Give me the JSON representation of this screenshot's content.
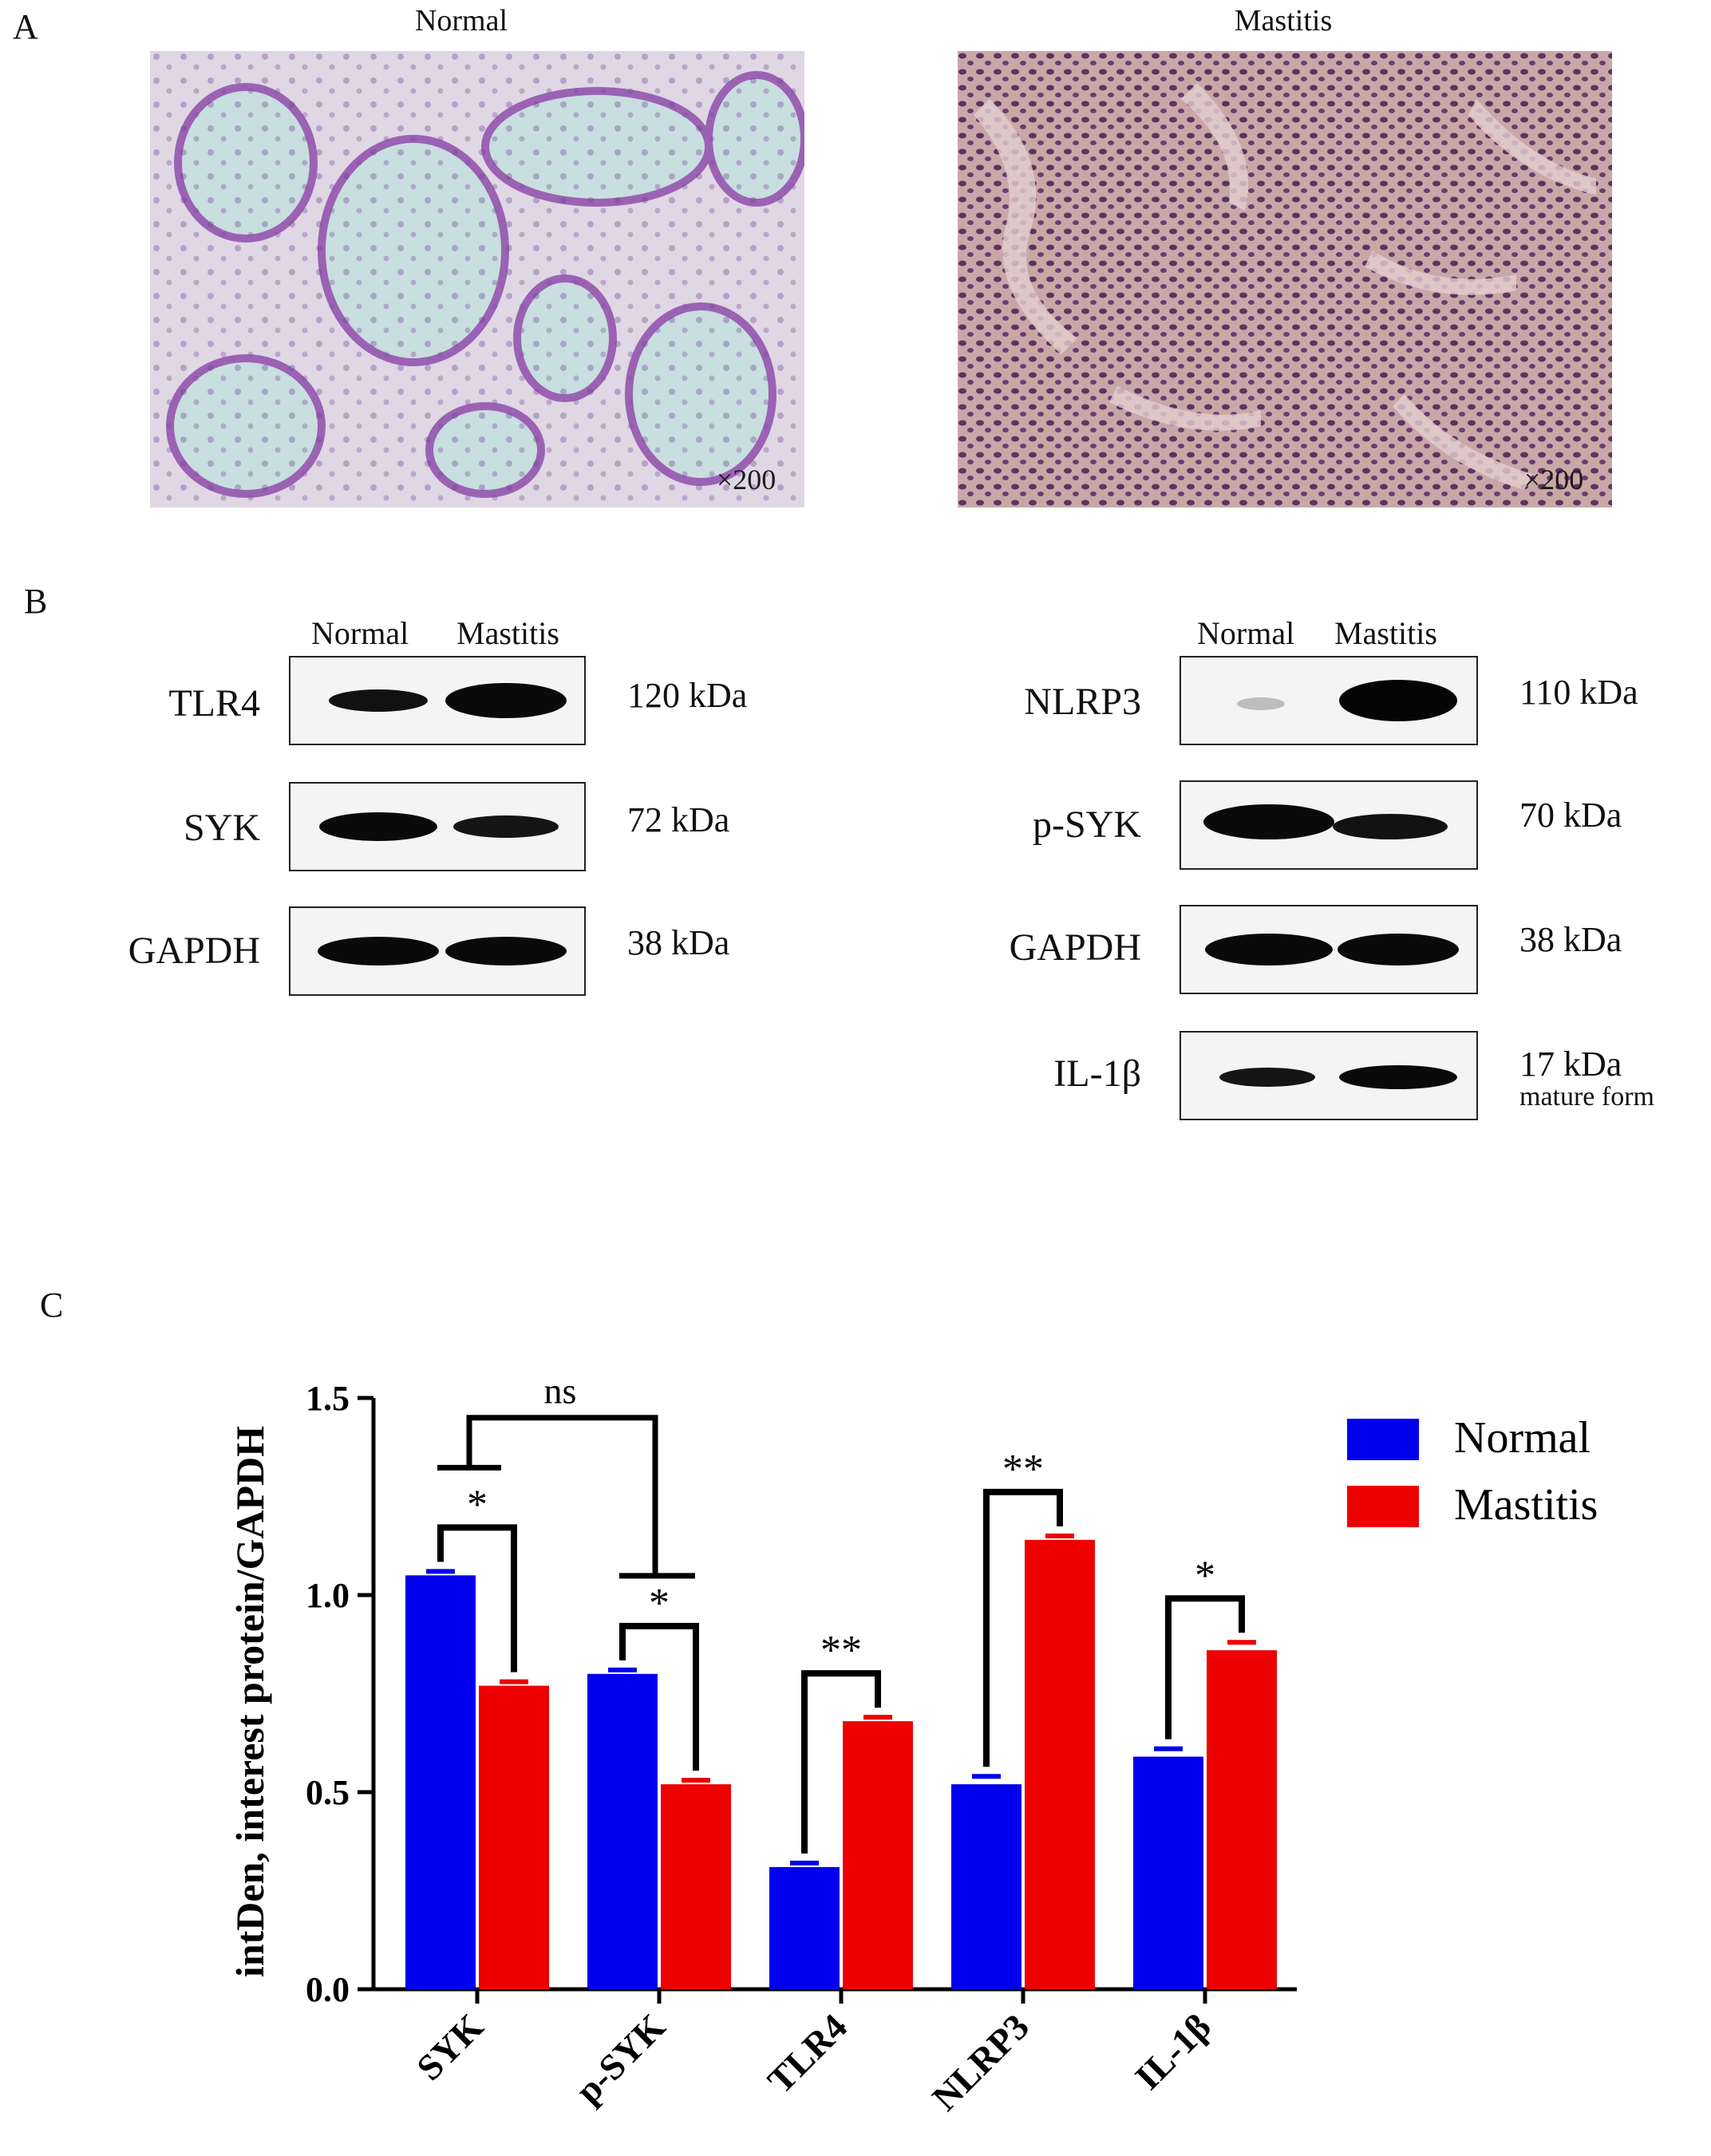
{
  "panels": {
    "a": "A",
    "b": "B",
    "c": "C"
  },
  "panel_a": {
    "left_title": "Normal",
    "right_title": "Mastitis",
    "left_magnification": "×200",
    "right_magnification": "×200"
  },
  "panel_b": {
    "lane_labels": [
      "Normal",
      "Mastitis"
    ],
    "left_blots": [
      {
        "protein": "TLR4",
        "size": "120 kDa"
      },
      {
        "protein": "SYK",
        "size": "72 kDa"
      },
      {
        "protein": "GAPDH",
        "size": "38 kDa"
      }
    ],
    "right_blots": [
      {
        "protein": "NLRP3",
        "size": "110 kDa"
      },
      {
        "protein": "p-SYK",
        "size": "70 kDa"
      },
      {
        "protein": "GAPDH",
        "size": "38 kDa"
      },
      {
        "protein": "IL-1β",
        "size": "17 kDa",
        "note": "mature form"
      }
    ]
  },
  "chart_data": {
    "type": "bar",
    "categories": [
      "SYK",
      "p-SYK",
      "TLR4",
      "NLRP3",
      "IL-1β"
    ],
    "series": [
      {
        "name": "Normal",
        "color": "#0000ee",
        "values": [
          1.05,
          0.8,
          0.31,
          0.52,
          0.59
        ],
        "errors": [
          0.01,
          0.01,
          0.01,
          0.02,
          0.02
        ]
      },
      {
        "name": "Mastitis",
        "color": "#ee0000",
        "values": [
          0.77,
          0.52,
          0.68,
          1.14,
          0.86
        ],
        "errors": [
          0.01,
          0.01,
          0.01,
          0.01,
          0.02
        ]
      }
    ],
    "ylabel": "intDen, interest protein/GAPDH",
    "xlabel": "",
    "ylim": [
      0.0,
      1.5
    ],
    "yticks": [
      "0.0",
      "0.5",
      "1.0",
      "1.5"
    ],
    "significance": [
      "*",
      "*",
      "**",
      "**",
      "*"
    ],
    "group_comparison": {
      "label": "ns",
      "between": [
        "SYK",
        "p-SYK"
      ]
    },
    "legend_position": "top-right"
  }
}
